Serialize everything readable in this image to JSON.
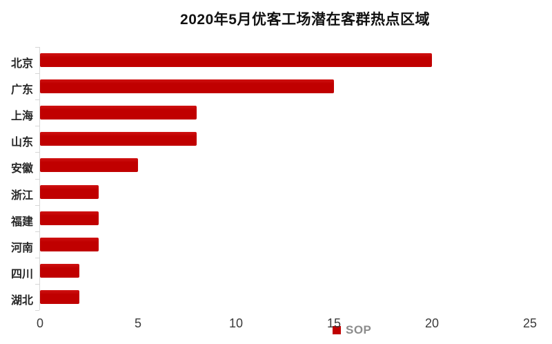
{
  "title": "2020年5月优客工场潜在客群热点区域",
  "legend": {
    "label": "SOP",
    "swatch_color": "#c00000"
  },
  "colors": {
    "bar": "#c00000",
    "axis_line": "#d6d6d6",
    "tick_label": "#3b3b3b",
    "category_label": "#262626",
    "legend_text": "#8c8c8c",
    "title_text": "#111111",
    "background": "#ffffff"
  },
  "chart_data": {
    "type": "bar",
    "orientation": "horizontal",
    "title": "2020年5月优客工场潜在客群热点区域",
    "categories": [
      "北京",
      "广东",
      "上海",
      "山东",
      "安徽",
      "浙江",
      "福建",
      "河南",
      "四川",
      "湖北"
    ],
    "values": [
      20,
      15,
      8,
      8,
      5,
      3,
      3,
      3,
      2,
      2
    ],
    "series": [
      {
        "name": "SOP",
        "values": [
          20,
          15,
          8,
          8,
          5,
          3,
          3,
          3,
          2,
          2
        ]
      }
    ],
    "xlabel": "",
    "ylabel": "",
    "xlim": [
      0,
      25
    ],
    "x_ticks": [
      0,
      5,
      10,
      15,
      20,
      25
    ],
    "grid": false,
    "legend_position": "inside-bottom-center",
    "bar_color": "#c00000"
  }
}
